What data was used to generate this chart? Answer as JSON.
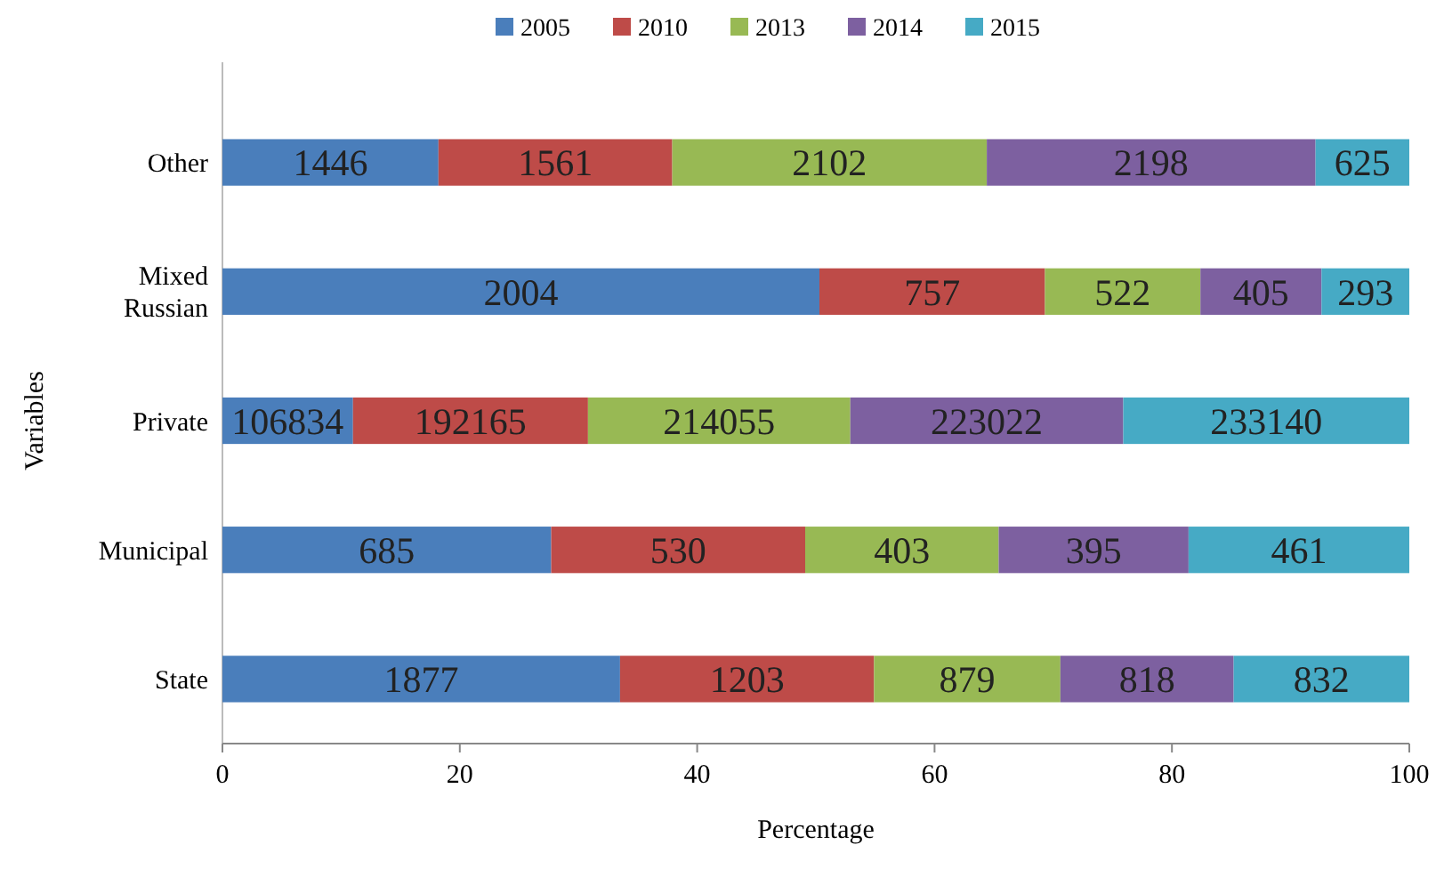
{
  "chart_data": {
    "type": "bar",
    "orientation": "horizontal",
    "stacked": true,
    "categories": [
      "Other",
      "Mixed Russian",
      "Private",
      "Municipal",
      "State"
    ],
    "series": [
      {
        "name": "2005",
        "color": "#4a7ebb",
        "values": [
          18.2,
          50.3,
          11.0,
          27.7,
          33.5
        ]
      },
      {
        "name": "2010",
        "color": "#be4b48",
        "values": [
          19.7,
          19.0,
          19.8,
          21.4,
          21.4
        ]
      },
      {
        "name": "2013",
        "color": "#98b954",
        "values": [
          26.5,
          13.1,
          22.1,
          16.3,
          15.7
        ]
      },
      {
        "name": "2014",
        "color": "#7d60a0",
        "values": [
          27.7,
          10.2,
          23.0,
          16.0,
          14.6
        ]
      },
      {
        "name": "2015",
        "color": "#46aac5",
        "values": [
          7.9,
          7.4,
          24.1,
          18.6,
          14.8
        ]
      }
    ],
    "annotations": [
      "1446",
      "1561",
      "2102",
      "2198",
      "625",
      "2004",
      "757",
      "522",
      "405",
      "293",
      "106834",
      "192165",
      "214055",
      "223022",
      "233140",
      "685",
      "530",
      "403",
      "395",
      "461",
      "1877",
      "1203",
      "879",
      "818",
      "832"
    ],
    "xlim": [
      0,
      100
    ],
    "xticks": [
      0,
      20,
      40,
      60,
      80,
      100
    ],
    "xlabel": "Percentage",
    "ylabel": "Variables",
    "legend": "top",
    "grid": false
  }
}
